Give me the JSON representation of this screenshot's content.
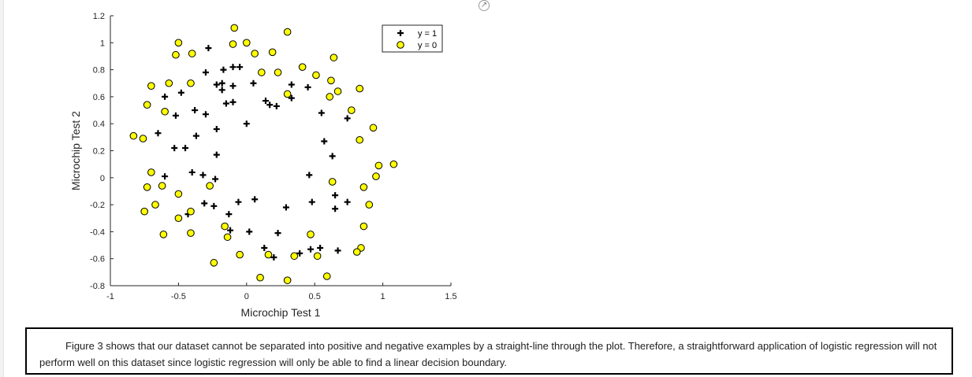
{
  "chart_data": {
    "type": "scatter",
    "xlabel": "Microchip Test 1",
    "ylabel": "Microchip Test 2",
    "xlim": [
      -1,
      1.5
    ],
    "ylim": [
      -0.8,
      1.2
    ],
    "xticks": [
      "-1",
      "-0.5",
      "0",
      "0.5",
      "1",
      "1.5"
    ],
    "yticks": [
      "-0.8",
      "-0.6",
      "-0.4",
      "-0.2",
      "0",
      "0.2",
      "0.4",
      "0.6",
      "0.8",
      "1",
      "1.2"
    ],
    "legend_position": "top-right",
    "grid": false,
    "series": [
      {
        "name": "y = 1",
        "marker": "plus",
        "color": "#000000",
        "points": [
          [
            -0.28,
            0.96
          ],
          [
            -0.3,
            0.78
          ],
          [
            -0.22,
            0.69
          ],
          [
            -0.18,
            0.7
          ],
          [
            -0.17,
            0.8
          ],
          [
            -0.1,
            0.82
          ],
          [
            -0.05,
            0.82
          ],
          [
            0.05,
            0.7
          ],
          [
            -0.18,
            0.65
          ],
          [
            -0.1,
            0.68
          ],
          [
            -0.15,
            0.55
          ],
          [
            -0.1,
            0.56
          ],
          [
            -0.6,
            0.6
          ],
          [
            -0.48,
            0.63
          ],
          [
            -0.52,
            0.46
          ],
          [
            -0.38,
            0.5
          ],
          [
            -0.3,
            0.47
          ],
          [
            -0.37,
            0.31
          ],
          [
            -0.22,
            0.36
          ],
          [
            -0.65,
            0.33
          ],
          [
            -0.53,
            0.22
          ],
          [
            -0.45,
            0.22
          ],
          [
            -0.22,
            0.17
          ],
          [
            0.0,
            0.4
          ],
          [
            0.14,
            0.57
          ],
          [
            0.17,
            0.54
          ],
          [
            0.22,
            0.53
          ],
          [
            0.33,
            0.69
          ],
          [
            0.33,
            0.59
          ],
          [
            0.45,
            0.67
          ],
          [
            0.55,
            0.48
          ],
          [
            0.74,
            0.44
          ],
          [
            0.57,
            0.27
          ],
          [
            0.63,
            0.16
          ],
          [
            -0.4,
            0.04
          ],
          [
            -0.32,
            0.02
          ],
          [
            -0.23,
            -0.01
          ],
          [
            -0.6,
            0.01
          ],
          [
            0.46,
            0.02
          ],
          [
            0.48,
            -0.18
          ],
          [
            0.65,
            -0.13
          ],
          [
            0.74,
            -0.18
          ],
          [
            0.65,
            -0.23
          ],
          [
            0.29,
            -0.22
          ],
          [
            0.06,
            -0.16
          ],
          [
            -0.06,
            -0.18
          ],
          [
            -0.13,
            -0.27
          ],
          [
            -0.24,
            -0.21
          ],
          [
            -0.31,
            -0.19
          ],
          [
            -0.43,
            -0.27
          ],
          [
            -0.12,
            -0.39
          ],
          [
            0.02,
            -0.4
          ],
          [
            0.23,
            -0.41
          ],
          [
            0.13,
            -0.52
          ],
          [
            0.2,
            -0.59
          ],
          [
            0.39,
            -0.56
          ],
          [
            0.47,
            -0.53
          ],
          [
            0.54,
            -0.52
          ],
          [
            0.67,
            -0.54
          ]
        ]
      },
      {
        "name": "y = 0",
        "marker": "circle",
        "color": "#ffff00",
        "points": [
          [
            -0.09,
            1.11
          ],
          [
            0.3,
            1.08
          ],
          [
            -0.5,
            1.0
          ],
          [
            -0.1,
            0.99
          ],
          [
            0.0,
            1.0
          ],
          [
            -0.52,
            0.91
          ],
          [
            -0.4,
            0.92
          ],
          [
            0.06,
            0.92
          ],
          [
            0.19,
            0.93
          ],
          [
            0.64,
            0.89
          ],
          [
            0.41,
            0.82
          ],
          [
            0.11,
            0.78
          ],
          [
            0.23,
            0.78
          ],
          [
            0.51,
            0.76
          ],
          [
            0.62,
            0.72
          ],
          [
            -0.7,
            0.68
          ],
          [
            -0.57,
            0.7
          ],
          [
            -0.41,
            0.7
          ],
          [
            0.67,
            0.64
          ],
          [
            0.83,
            0.66
          ],
          [
            0.3,
            0.62
          ],
          [
            0.61,
            0.6
          ],
          [
            -0.73,
            0.54
          ],
          [
            -0.6,
            0.49
          ],
          [
            0.77,
            0.5
          ],
          [
            0.93,
            0.37
          ],
          [
            -0.83,
            0.31
          ],
          [
            -0.76,
            0.29
          ],
          [
            0.83,
            0.28
          ],
          [
            -0.7,
            0.04
          ],
          [
            0.97,
            0.09
          ],
          [
            1.08,
            0.1
          ],
          [
            0.95,
            0.01
          ],
          [
            -0.27,
            -0.06
          ],
          [
            -0.62,
            -0.06
          ],
          [
            -0.73,
            -0.07
          ],
          [
            0.63,
            -0.03
          ],
          [
            0.86,
            -0.07
          ],
          [
            -0.5,
            -0.12
          ],
          [
            -0.67,
            -0.2
          ],
          [
            0.9,
            -0.2
          ],
          [
            -0.75,
            -0.25
          ],
          [
            -0.41,
            -0.25
          ],
          [
            -0.5,
            -0.3
          ],
          [
            0.86,
            -0.36
          ],
          [
            -0.16,
            -0.36
          ],
          [
            -0.61,
            -0.42
          ],
          [
            -0.41,
            -0.41
          ],
          [
            -0.14,
            -0.44
          ],
          [
            0.47,
            -0.42
          ],
          [
            0.84,
            -0.52
          ],
          [
            0.81,
            -0.55
          ],
          [
            -0.05,
            -0.57
          ],
          [
            0.16,
            -0.57
          ],
          [
            0.35,
            -0.58
          ],
          [
            0.52,
            -0.58
          ],
          [
            -0.24,
            -0.63
          ],
          [
            0.1,
            -0.74
          ],
          [
            0.59,
            -0.73
          ],
          [
            0.3,
            -0.76
          ]
        ]
      }
    ]
  },
  "caption": {
    "text": "Figure 3 shows that our dataset cannot be separated into positive and negative examples by a straight-line through the plot. Therefore, a straightforward application of logistic regression will not perform well on this dataset since logistic regression will only be able to find a linear decision boundary."
  }
}
